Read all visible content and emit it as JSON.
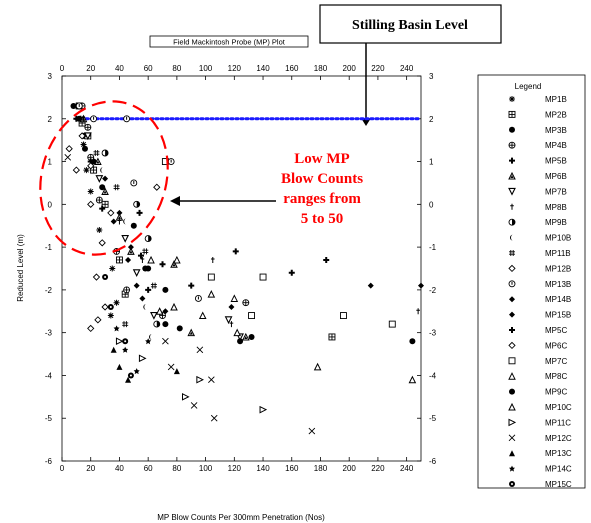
{
  "chart_data": {
    "type": "scatter",
    "title": "Field Mackintosh Probe (MP) Plot",
    "xlabel": "MP Blow Counts Per 300mm Penetration (Nos)",
    "ylabel": "Reduced Level (m)",
    "xlim": [
      0,
      250
    ],
    "ylim": [
      -6,
      3
    ],
    "xticks": [
      0,
      20,
      40,
      60,
      80,
      100,
      120,
      140,
      160,
      180,
      200,
      220,
      240
    ],
    "yticks": [
      3,
      2,
      1,
      0,
      -1,
      -2,
      -3,
      -4,
      -5,
      -6
    ],
    "grid": false,
    "legend_title": "Legend",
    "legend_position": "right",
    "reference_line": {
      "label": "Stilling Basin Level",
      "y": 2,
      "color": "#1a1aff",
      "style": "dotted"
    },
    "annotation": {
      "lines": [
        "Low MP",
        "Blow Counts",
        "ranges from",
        "5 to 50"
      ],
      "color": "#ff0000"
    },
    "series": [
      {
        "name": "MP1B",
        "marker": "asterisk",
        "points": [
          [
            10,
            2.3
          ],
          [
            13,
            2.0
          ],
          [
            15,
            1.4
          ],
          [
            17,
            0.8
          ],
          [
            20,
            0.3
          ],
          [
            26,
            -0.6
          ],
          [
            35,
            -1.5
          ],
          [
            38,
            -2.3
          ],
          [
            34,
            -2.6
          ]
        ]
      },
      {
        "name": "MP2B",
        "marker": "square-plus",
        "points": [
          [
            12,
            2.3
          ],
          [
            14,
            1.9
          ],
          [
            18,
            1.6
          ],
          [
            22,
            0.8
          ],
          [
            30,
            0.0
          ],
          [
            40,
            -1.3
          ],
          [
            44,
            -2.1
          ],
          [
            188,
            -3.1
          ]
        ]
      },
      {
        "name": "MP3B",
        "marker": "dot",
        "points": [
          [
            8,
            2.3
          ],
          [
            12,
            2.0
          ],
          [
            16,
            1.3
          ],
          [
            22,
            1.0
          ],
          [
            28,
            0.4
          ],
          [
            50,
            -0.5
          ],
          [
            58,
            -1.5
          ],
          [
            72,
            -2.0
          ],
          [
            132,
            -3.1
          ]
        ]
      },
      {
        "name": "MP4B",
        "marker": "circle-plus",
        "points": [
          [
            14,
            2.3
          ],
          [
            18,
            1.8
          ],
          [
            20,
            1.1
          ],
          [
            26,
            0.1
          ],
          [
            38,
            -1.1
          ],
          [
            45,
            -2.0
          ],
          [
            70,
            -2.6
          ],
          [
            128,
            -2.3
          ]
        ]
      },
      {
        "name": "MP5B",
        "marker": "plus-bold",
        "points": [
          [
            10,
            2.0
          ],
          [
            15,
            1.6
          ],
          [
            20,
            1.0
          ],
          [
            28,
            -0.1
          ],
          [
            55,
            -1.2
          ],
          [
            60,
            -2.0
          ],
          [
            121,
            -1.1
          ],
          [
            160,
            -1.6
          ]
        ]
      },
      {
        "name": "MP6B",
        "marker": "triangle",
        "points": [
          [
            15,
            2.0
          ],
          [
            25,
            1.0
          ],
          [
            30,
            0.3
          ],
          [
            40,
            -0.3
          ],
          [
            48,
            -1.1
          ],
          [
            78,
            -1.4
          ],
          [
            90,
            -3.0
          ],
          [
            128,
            -3.1
          ]
        ]
      },
      {
        "name": "MP7B",
        "marker": "triangle-down",
        "points": [
          [
            18,
            1.6
          ],
          [
            26,
            0.6
          ],
          [
            44,
            -0.8
          ],
          [
            52,
            -1.6
          ],
          [
            64,
            -2.6
          ],
          [
            116,
            -2.7
          ],
          [
            124,
            -3.1
          ]
        ]
      },
      {
        "name": "MP8B",
        "marker": "dagger",
        "points": [
          [
            40,
            -0.4
          ],
          [
            56,
            -1.3
          ],
          [
            105,
            -1.3
          ],
          [
            118,
            -2.8
          ],
          [
            248,
            -2.5
          ]
        ]
      },
      {
        "name": "MP9B",
        "marker": "half-circle",
        "points": [
          [
            12,
            2.3
          ],
          [
            30,
            1.2
          ],
          [
            52,
            0.0
          ],
          [
            60,
            -0.8
          ],
          [
            66,
            -2.8
          ]
        ]
      },
      {
        "name": "MP10B",
        "marker": "crescent",
        "points": [
          [
            16,
            2.0
          ],
          [
            28,
            0.8
          ],
          [
            44,
            -0.4
          ],
          [
            58,
            -2.4
          ],
          [
            62,
            -3.1
          ]
        ]
      },
      {
        "name": "MP11B",
        "marker": "hash",
        "points": [
          [
            14,
            2.0
          ],
          [
            24,
            1.2
          ],
          [
            38,
            0.4
          ],
          [
            58,
            -1.1
          ],
          [
            64,
            -1.9
          ],
          [
            44,
            -2.8
          ]
        ]
      },
      {
        "name": "MP12B",
        "marker": "diamond-open",
        "points": [
          [
            5,
            1.3
          ],
          [
            10,
            0.8
          ],
          [
            20,
            0.0
          ],
          [
            28,
            -0.9
          ],
          [
            24,
            -1.7
          ],
          [
            25,
            -2.7
          ]
        ]
      },
      {
        "name": "MP13B",
        "marker": "circle-bar",
        "points": [
          [
            12,
            2.3
          ],
          [
            22,
            2.0
          ],
          [
            45,
            2.0
          ],
          [
            50,
            0.5
          ],
          [
            76,
            1.0
          ],
          [
            95,
            -2.2
          ]
        ]
      },
      {
        "name": "MP14B",
        "marker": "diamond",
        "points": [
          [
            40,
            -0.2
          ],
          [
            48,
            -1.0
          ],
          [
            52,
            -1.9
          ],
          [
            72,
            -2.5
          ],
          [
            215,
            -1.9
          ],
          [
            250,
            -1.9
          ]
        ]
      },
      {
        "name": "MP15B",
        "marker": "diamond-bold",
        "points": [
          [
            30,
            0.6
          ],
          [
            36,
            -0.4
          ],
          [
            46,
            -1.3
          ],
          [
            56,
            -2.2
          ],
          [
            118,
            -2.4
          ]
        ]
      },
      {
        "name": "MP5C",
        "marker": "plus-heavy",
        "points": [
          [
            54,
            -0.2
          ],
          [
            70,
            -1.4
          ],
          [
            90,
            -1.9
          ],
          [
            184,
            -1.3
          ]
        ]
      },
      {
        "name": "MP6C",
        "marker": "diamond-open",
        "points": [
          [
            14,
            1.6
          ],
          [
            20,
            0.9
          ],
          [
            34,
            -0.2
          ],
          [
            66,
            0.4
          ],
          [
            30,
            -2.4
          ],
          [
            20,
            -2.9
          ]
        ]
      },
      {
        "name": "MP7C",
        "marker": "square",
        "points": [
          [
            72,
            1.0
          ],
          [
            104,
            -1.7
          ],
          [
            140,
            -1.7
          ],
          [
            132,
            -2.6
          ],
          [
            196,
            -2.6
          ],
          [
            230,
            -2.8
          ]
        ]
      },
      {
        "name": "MP8C",
        "marker": "triangle-open",
        "points": [
          [
            80,
            -1.3
          ],
          [
            68,
            -2.5
          ],
          [
            98,
            -2.6
          ],
          [
            104,
            -2.1
          ],
          [
            178,
            -3.8
          ],
          [
            244,
            -4.1
          ]
        ]
      },
      {
        "name": "MP9C",
        "marker": "dot",
        "points": [
          [
            60,
            -1.5
          ],
          [
            72,
            -2.8
          ],
          [
            82,
            -2.9
          ],
          [
            124,
            -3.2
          ],
          [
            244,
            -3.2
          ]
        ]
      },
      {
        "name": "MP10C",
        "marker": "triangle-open",
        "points": [
          [
            62,
            -1.3
          ],
          [
            78,
            -2.4
          ],
          [
            120,
            -2.2
          ],
          [
            122,
            -3.0
          ]
        ]
      },
      {
        "name": "MP11C",
        "marker": "triangle-right",
        "points": [
          [
            40,
            -3.2
          ],
          [
            56,
            -3.6
          ],
          [
            86,
            -4.5
          ],
          [
            96,
            -4.1
          ],
          [
            140,
            -4.8
          ]
        ]
      },
      {
        "name": "MP12C",
        "marker": "x",
        "points": [
          [
            4,
            1.1
          ],
          [
            72,
            -3.2
          ],
          [
            96,
            -3.4
          ],
          [
            76,
            -3.8
          ],
          [
            92,
            -4.7
          ],
          [
            104,
            -4.1
          ],
          [
            106,
            -5.0
          ],
          [
            174,
            -5.3
          ]
        ]
      },
      {
        "name": "MP13C",
        "marker": "triangle-filled",
        "points": [
          [
            36,
            -3.4
          ],
          [
            40,
            -3.8
          ],
          [
            46,
            -4.1
          ],
          [
            80,
            -3.9
          ]
        ]
      },
      {
        "name": "MP14C",
        "marker": "star",
        "points": [
          [
            38,
            -2.9
          ],
          [
            44,
            -3.4
          ],
          [
            52,
            -3.9
          ],
          [
            60,
            -3.2
          ]
        ]
      },
      {
        "name": "MP15C",
        "marker": "circle-dot",
        "points": [
          [
            30,
            -1.7
          ],
          [
            34,
            -2.4
          ],
          [
            44,
            -3.2
          ],
          [
            48,
            -4.0
          ]
        ]
      }
    ]
  }
}
